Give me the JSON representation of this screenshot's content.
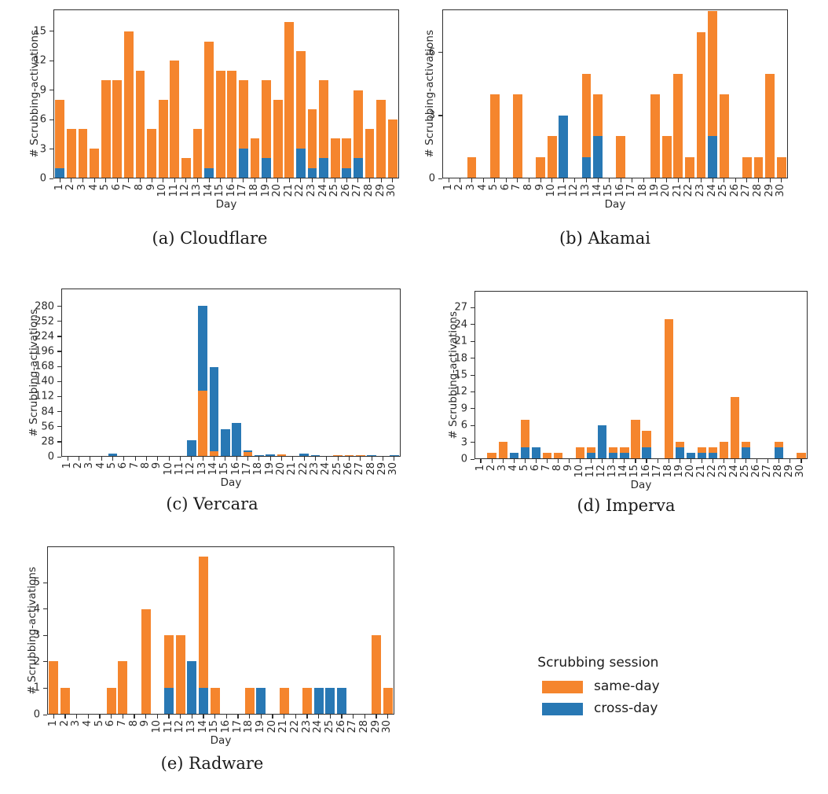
{
  "colors": {
    "same-day": "#f5852d",
    "cross-day": "#2878b4"
  },
  "days": [
    1,
    2,
    3,
    4,
    5,
    6,
    7,
    8,
    9,
    10,
    11,
    12,
    13,
    14,
    15,
    16,
    17,
    18,
    19,
    20,
    21,
    22,
    23,
    24,
    25,
    26,
    27,
    28,
    29,
    30
  ],
  "legend": {
    "title": "Scrubbing session",
    "items": [
      {
        "label": "same-day",
        "color_key": "same-day"
      },
      {
        "label": "cross-day",
        "color_key": "cross-day"
      }
    ]
  },
  "chart_data": [
    {
      "type": "bar",
      "stacked": true,
      "caption": "(a) Cloudflare",
      "xlabel": "Day",
      "ylabel": "# Scrubbing-activations",
      "yticks": [
        0,
        3,
        6,
        9,
        12,
        15
      ],
      "ymax": 17.2,
      "stack_order": [
        "cross-day",
        "same-day"
      ],
      "series": {
        "same-day": [
          7,
          5,
          5,
          3,
          10,
          10,
          15,
          11,
          5,
          8,
          12,
          2,
          5,
          13,
          11,
          11,
          7,
          4,
          8,
          8,
          16,
          10,
          6,
          8,
          4,
          3,
          7,
          5,
          8,
          6
        ],
        "cross-day": [
          1,
          0,
          0,
          0,
          0,
          0,
          0,
          0,
          0,
          0,
          0,
          0,
          0,
          1,
          0,
          0,
          3,
          0,
          2,
          0,
          0,
          3,
          1,
          2,
          0,
          1,
          2,
          0,
          0,
          0
        ]
      }
    },
    {
      "type": "bar",
      "stacked": true,
      "caption": "(b) Akamai",
      "xlabel": "Day",
      "ylabel": "# Scrubbing-activations",
      "yticks": [
        0,
        3,
        6
      ],
      "ymax": 8.05,
      "stack_order": [
        "cross-day",
        "same-day"
      ],
      "series": {
        "same-day": [
          0,
          0,
          1,
          0,
          4,
          0,
          4,
          0,
          1,
          2,
          0,
          0,
          4,
          2,
          0,
          2,
          0,
          0,
          4,
          2,
          5,
          1,
          7,
          6,
          4,
          0,
          1,
          1,
          5,
          1
        ],
        "cross-day": [
          0,
          0,
          0,
          0,
          0,
          0,
          0,
          0,
          0,
          0,
          3,
          0,
          1,
          2,
          0,
          0,
          0,
          0,
          0,
          0,
          0,
          0,
          0,
          2,
          0,
          0,
          0,
          0,
          0,
          0
        ]
      }
    },
    {
      "type": "bar",
      "stacked": true,
      "caption": "(c) Vercara",
      "xlabel": "Day",
      "ylabel": "# Scrubbing-activations",
      "yticks": [
        0,
        28,
        56,
        84,
        112,
        140,
        168,
        196,
        224,
        252,
        280
      ],
      "ymax": 313,
      "stack_order": [
        "same-day",
        "cross-day"
      ],
      "series": {
        "same-day": [
          0,
          0,
          0,
          0,
          0,
          0,
          0,
          0,
          0,
          0,
          0,
          0,
          122,
          9,
          0,
          0,
          8,
          0,
          0,
          3,
          0,
          0,
          0,
          0,
          1,
          2,
          1,
          0,
          0,
          0
        ],
        "cross-day": [
          0,
          0,
          0,
          0,
          4,
          0,
          0,
          0,
          0,
          0,
          0,
          29,
          160,
          158,
          50,
          62,
          2,
          1,
          3,
          0,
          0,
          4,
          2,
          0,
          0,
          0,
          0,
          1,
          0,
          1
        ]
      }
    },
    {
      "type": "bar",
      "stacked": true,
      "caption": "(d) Imperva",
      "xlabel": "Day",
      "ylabel": "# Scrubbing-activations",
      "yticks": [
        0,
        3,
        6,
        9,
        12,
        15,
        18,
        21,
        24,
        27
      ],
      "ymax": 30,
      "stack_order": [
        "cross-day",
        "same-day"
      ],
      "series": {
        "same-day": [
          0,
          1,
          3,
          0,
          5,
          0,
          1,
          1,
          0,
          2,
          1,
          0,
          1,
          1,
          7,
          3,
          0,
          25,
          1,
          0,
          1,
          1,
          3,
          11,
          1,
          0,
          0,
          1,
          0,
          1
        ],
        "cross-day": [
          0,
          0,
          0,
          1,
          2,
          2,
          0,
          0,
          0,
          0,
          1,
          6,
          1,
          1,
          0,
          2,
          0,
          0,
          2,
          1,
          1,
          1,
          0,
          0,
          2,
          0,
          0,
          2,
          0,
          0
        ]
      }
    },
    {
      "type": "bar",
      "stacked": true,
      "caption": "(e) Radware",
      "xlabel": "Day",
      "ylabel": "# Scrubbing-activations",
      "yticks": [
        0,
        1,
        2,
        3,
        4,
        5
      ],
      "ymax": 6.37,
      "stack_order": [
        "cross-day",
        "same-day"
      ],
      "series": {
        "same-day": [
          2,
          1,
          0,
          0,
          0,
          1,
          2,
          0,
          4,
          0,
          2,
          3,
          0,
          5,
          1,
          0,
          0,
          1,
          0,
          0,
          1,
          0,
          1,
          0,
          0,
          0,
          0,
          0,
          3,
          1
        ],
        "cross-day": [
          0,
          0,
          0,
          0,
          0,
          0,
          0,
          0,
          0,
          0,
          1,
          0,
          2,
          1,
          0,
          0,
          0,
          0,
          1,
          0,
          0,
          0,
          0,
          1,
          1,
          1,
          0,
          0,
          0,
          0
        ]
      }
    }
  ]
}
